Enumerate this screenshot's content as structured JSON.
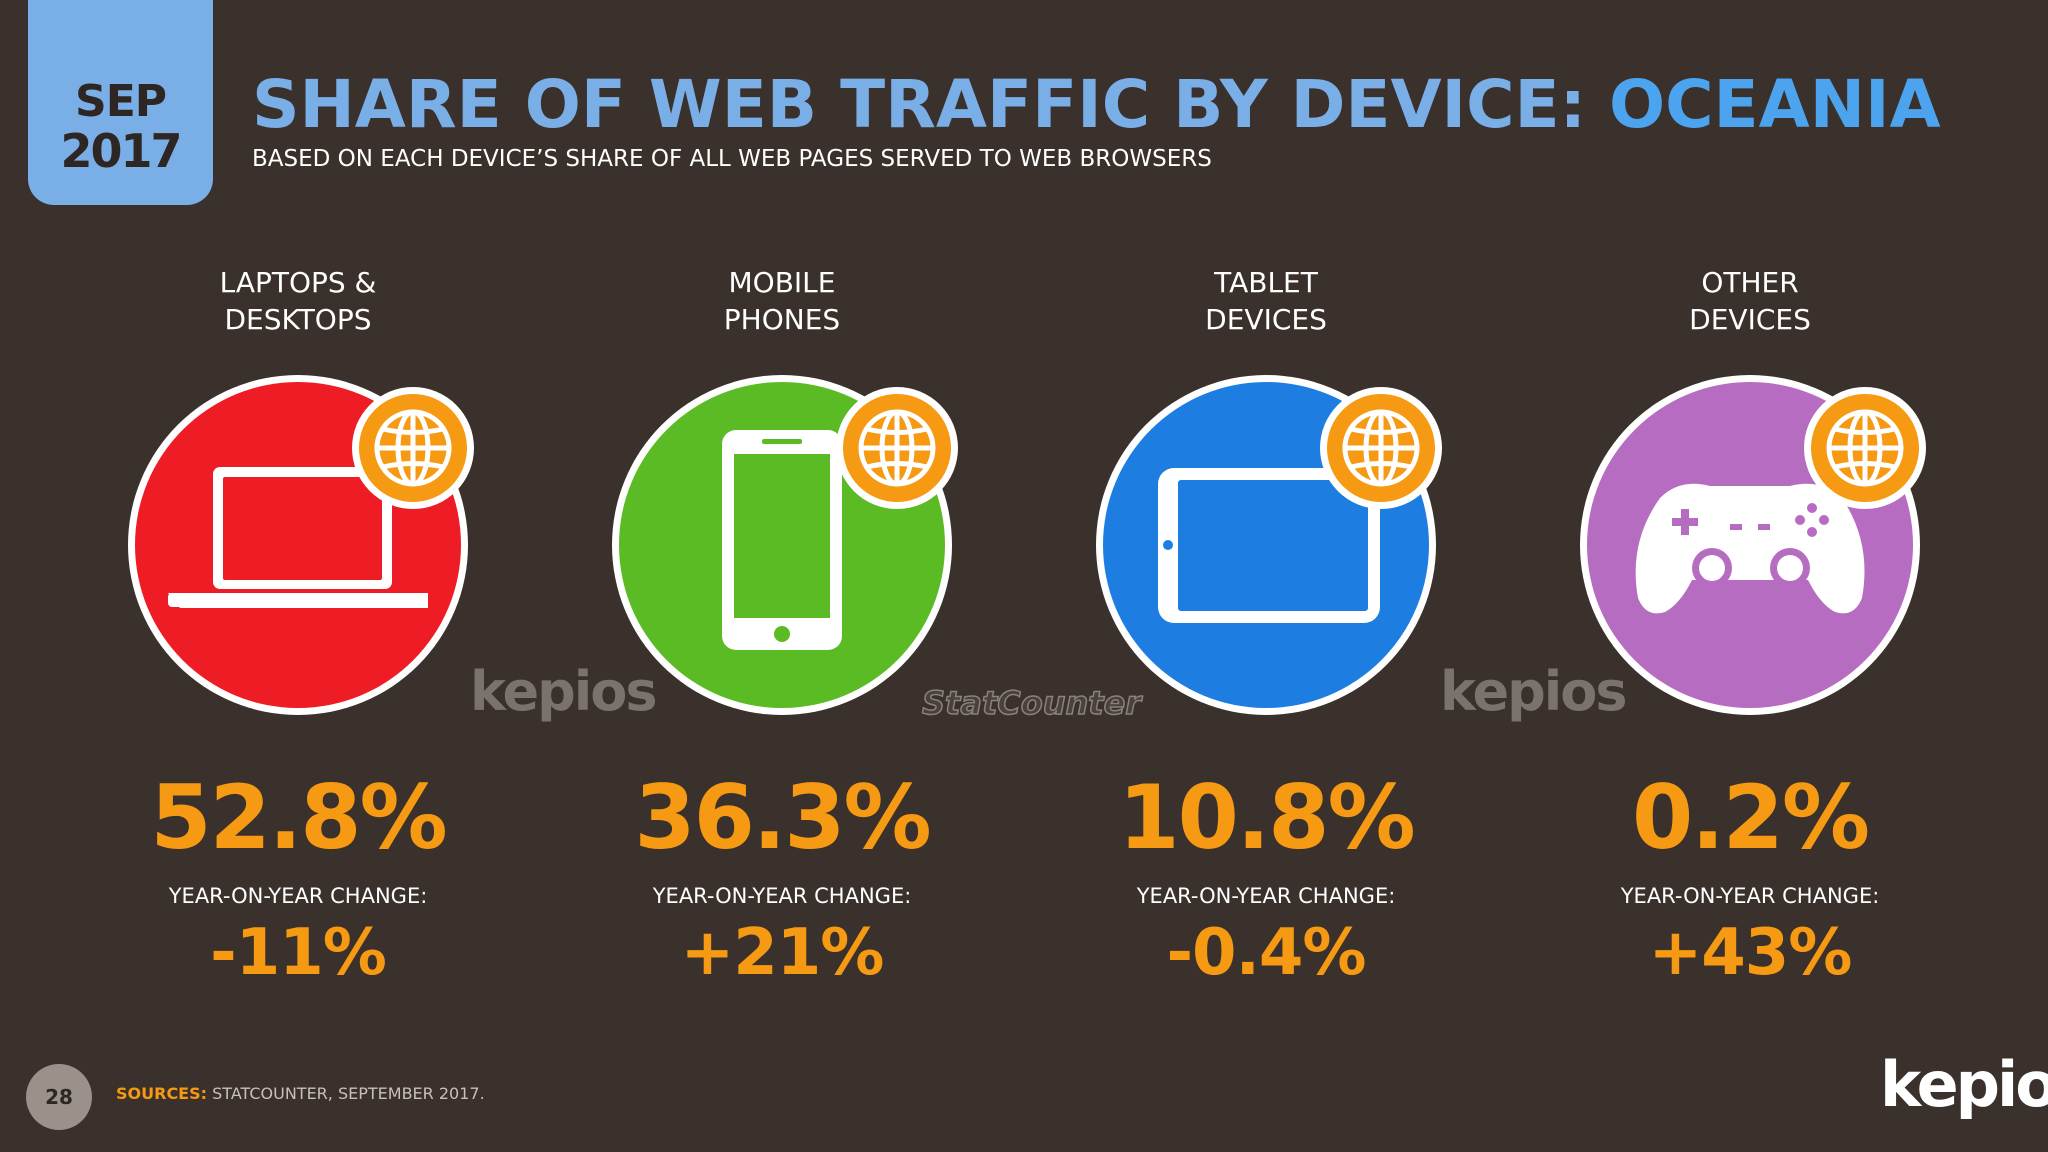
{
  "date": {
    "month": "SEP",
    "year": "2017"
  },
  "title": {
    "main": "SHARE OF WEB TRAFFIC BY DEVICE:",
    "region": "OCEANIA"
  },
  "subtitle": "BASED ON EACH DEVICE’S SHARE OF ALL WEB PAGES SERVED TO WEB BROWSERS",
  "colors": {
    "laptops": "#ee1c24",
    "mobile": "#5bbb24",
    "tablet": "#1e7de0",
    "other": "#b66cc0",
    "accent": "#f59a12",
    "background": "#3a302c",
    "title": "#7aaee6"
  },
  "yoy_label": "YEAR-ON-YEAR CHANGE:",
  "devices": [
    {
      "label_line1": "LAPTOPS &",
      "label_line2": "DESKTOPS",
      "value": "52.8%",
      "yoy": "-11%",
      "icon": "laptop-icon"
    },
    {
      "label_line1": "MOBILE",
      "label_line2": "PHONES",
      "value": "36.3%",
      "yoy": "+21%",
      "icon": "mobile-phone-icon"
    },
    {
      "label_line1": "TABLET",
      "label_line2": "DEVICES",
      "value": "10.8%",
      "yoy": "-0.4%",
      "icon": "tablet-icon"
    },
    {
      "label_line1": "OTHER",
      "label_line2": "DEVICES",
      "value": "0.2%",
      "yoy": "+43%",
      "icon": "game-controller-icon"
    }
  ],
  "watermarks": {
    "kepios": "kepios",
    "statcounter": "StatCounter"
  },
  "footer": {
    "page_number": "28",
    "sources_key": "SOURCES:",
    "sources_text": "STATCOUNTER, SEPTEMBER 2017.",
    "brand": "kepios"
  }
}
